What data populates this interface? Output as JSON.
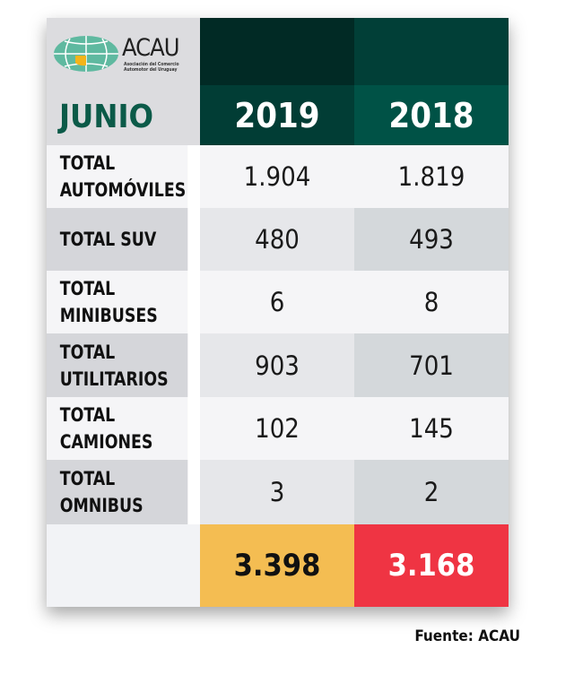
{
  "logo": {
    "name": "ACAU",
    "subtitle": "Asociación del Comercio Automotor del Uruguay"
  },
  "header": {
    "month": "JUNIO",
    "years": [
      "2019",
      "2018"
    ]
  },
  "rows": [
    {
      "label": "TOTAL AUTOMÓVILES",
      "v2019": "1.904",
      "v2018": "1.819"
    },
    {
      "label": "TOTAL SUV",
      "v2019": "480",
      "v2018": "493"
    },
    {
      "label": "TOTAL MINIBUSES",
      "v2019": "6",
      "v2018": "8"
    },
    {
      "label": "TOTAL UTILITARIOS",
      "v2019": "903",
      "v2018": "701"
    },
    {
      "label": "TOTAL CAMIONES",
      "v2019": "102",
      "v2018": "145"
    },
    {
      "label": "TOTAL OMNIBUS",
      "v2019": "3",
      "v2018": "2"
    }
  ],
  "totals": {
    "v2019": "3.398",
    "v2018": "3.168"
  },
  "source": "Fuente: ACAU",
  "colors": {
    "dark_green": "#01302a",
    "teal": "#004f45",
    "yellow": "#f4bd52",
    "red": "#ef3443",
    "month_green": "#0b5a48"
  }
}
